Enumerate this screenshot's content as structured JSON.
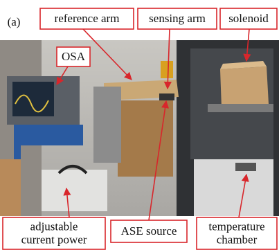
{
  "panel": "(a)",
  "labels": [
    {
      "lines": [
        "reference arm"
      ]
    },
    {
      "lines": [
        "sensing arm"
      ]
    },
    {
      "lines": [
        "solenoid"
      ]
    },
    {
      "lines": [
        "OSA"
      ]
    },
    {
      "lines": [
        "adjustable",
        "current power"
      ]
    },
    {
      "lines": [
        "ASE source"
      ]
    },
    {
      "lines": [
        "temperature",
        "chamber"
      ]
    }
  ]
}
